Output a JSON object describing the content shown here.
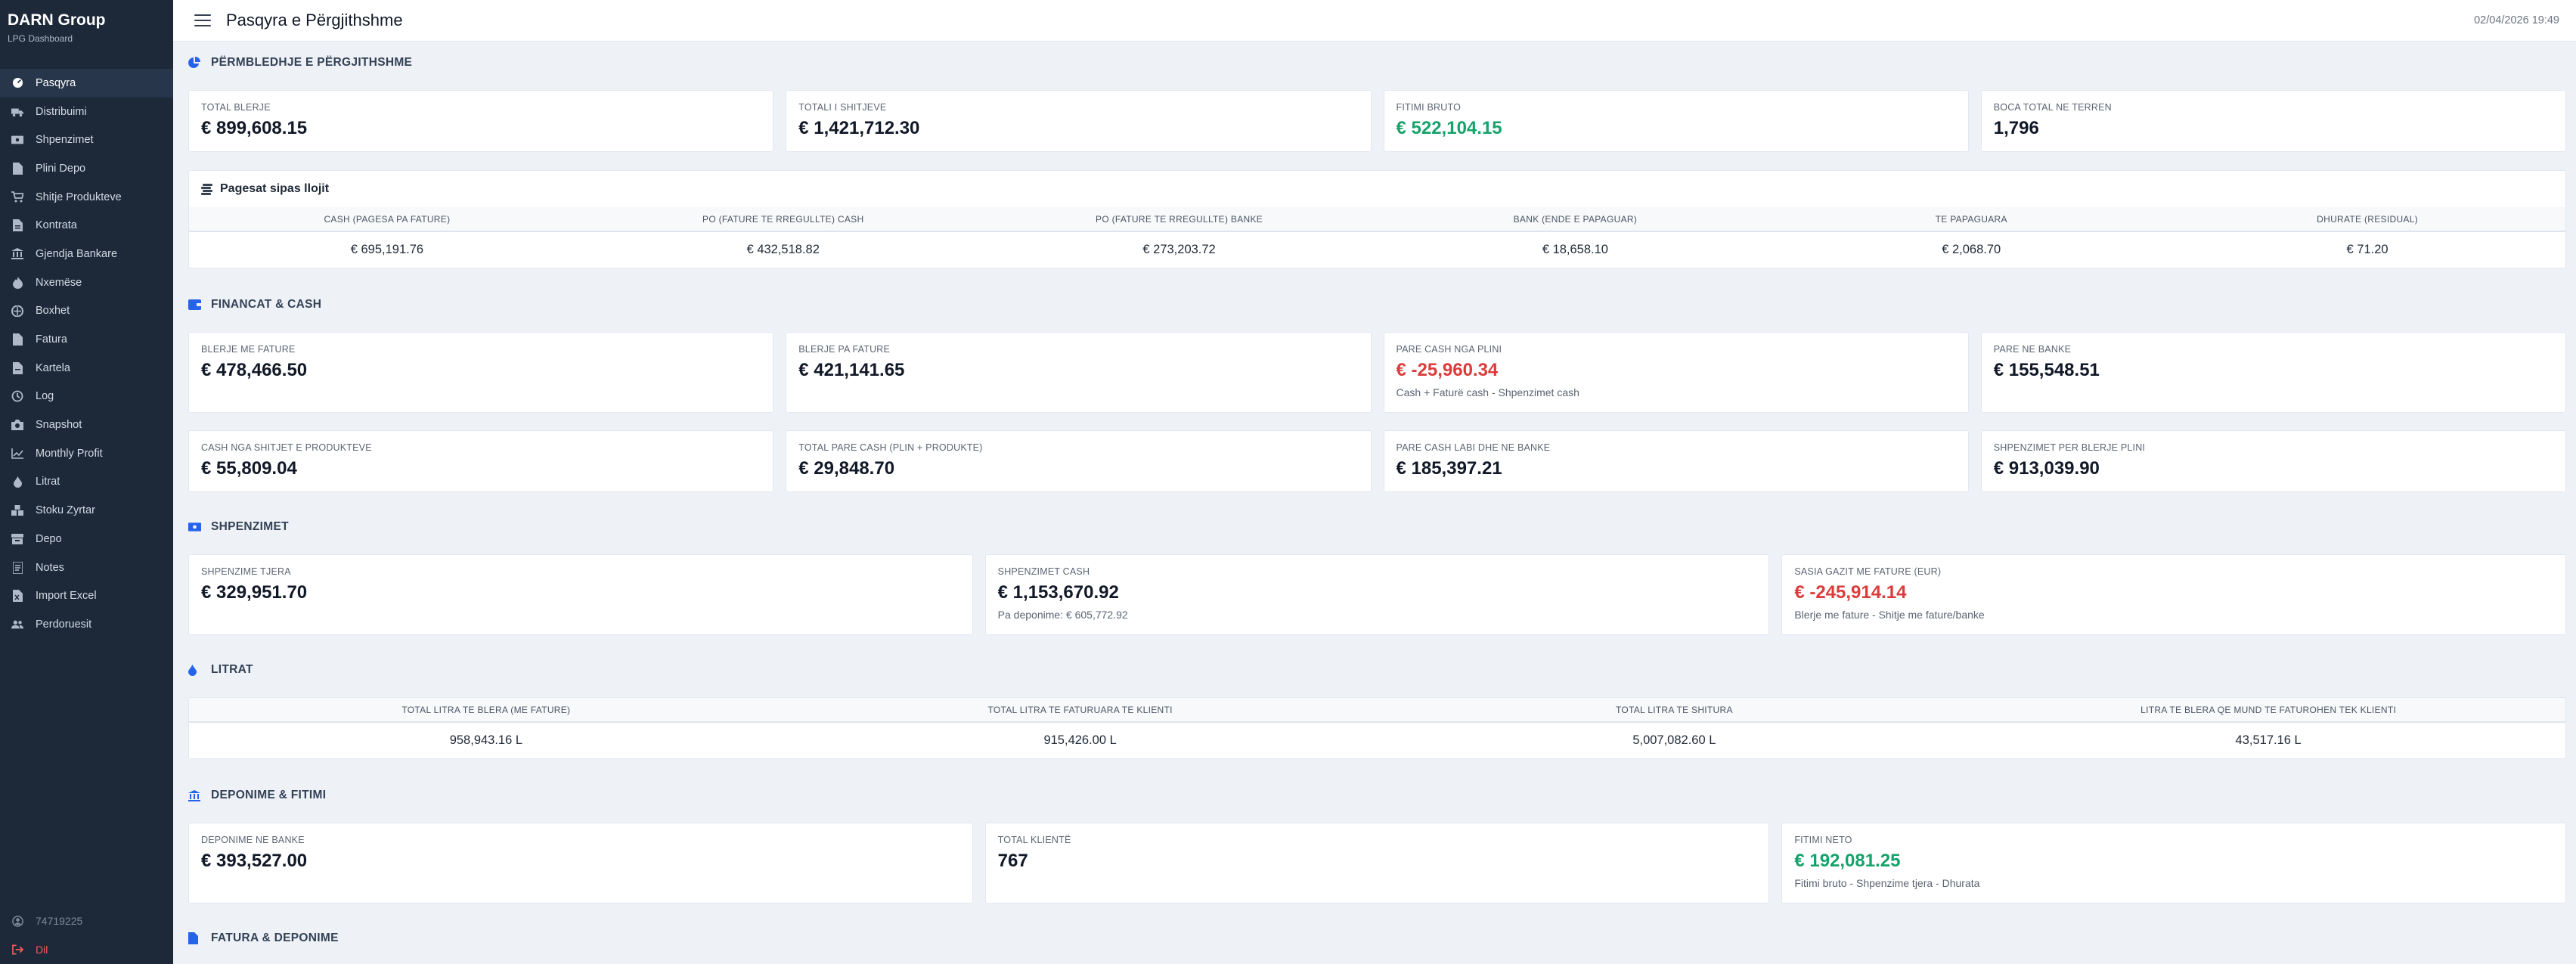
{
  "sidebar": {
    "brand": "DARN Group",
    "subtitle": "LPG Dashboard",
    "items": [
      {
        "label": "Pasqyra",
        "icon": "dashboard-icon",
        "active": true
      },
      {
        "label": "Distribuimi",
        "icon": "truck-icon"
      },
      {
        "label": "Shpenzimet",
        "icon": "money-icon"
      },
      {
        "label": "Plini Depo",
        "icon": "file-icon"
      },
      {
        "label": "Shitje Produkteve",
        "icon": "cart-icon"
      },
      {
        "label": "Kontrata",
        "icon": "document-icon"
      },
      {
        "label": "Gjendja Bankare",
        "icon": "bank-icon"
      },
      {
        "label": "Nxemëse",
        "icon": "flame-icon"
      },
      {
        "label": "Boxhet",
        "icon": "box-icon"
      },
      {
        "label": "Fatura",
        "icon": "invoice-icon"
      },
      {
        "label": "Kartela",
        "icon": "card-file-icon"
      },
      {
        "label": "Log",
        "icon": "history-icon"
      },
      {
        "label": "Snapshot",
        "icon": "camera-icon"
      },
      {
        "label": "Monthly Profit",
        "icon": "chart-icon"
      },
      {
        "label": "Litrat",
        "icon": "droplet-icon"
      },
      {
        "label": "Stoku Zyrtar",
        "icon": "stock-icon"
      },
      {
        "label": "Depo",
        "icon": "warehouse-icon"
      },
      {
        "label": "Notes",
        "icon": "notes-icon"
      },
      {
        "label": "Import Excel",
        "icon": "excel-icon"
      },
      {
        "label": "Perdoruesit",
        "icon": "users-icon"
      }
    ],
    "user": "74719225",
    "logout": "Dil"
  },
  "topbar": {
    "title": "Pasqyra e Përgjithshme",
    "datetime": "02/04/2026 19:49"
  },
  "sections": {
    "overview": {
      "title": "Përmbledhje e Përgjithshme",
      "cards": [
        {
          "label": "Total Blerje",
          "value": "€ 899,608.15"
        },
        {
          "label": "Totali i Shitjeve",
          "value": "€ 1,421,712.30"
        },
        {
          "label": "Fitimi Bruto",
          "value": "€ 522,104.15"
        },
        {
          "label": "Boca total ne terren",
          "value": "1,796"
        }
      ],
      "payments": {
        "title": "Pagesat sipas llojit",
        "headers": [
          "Cash (pagesa pa fature)",
          "PO (fature te rregullte) Cash",
          "PO (fature te rregullte) Banke",
          "Bank (ende e papaguar)",
          "Te papaguara",
          "Dhurate (residual)"
        ],
        "values": [
          "€ 695,191.76",
          "€ 432,518.82",
          "€ 273,203.72",
          "€ 18,658.10",
          "€ 2,068.70",
          "€ 71.20"
        ]
      }
    },
    "finance": {
      "title": "Financat & Cash",
      "cards_row1": [
        {
          "label": "Blerje me fature",
          "value": "€ 478,466.50"
        },
        {
          "label": "Blerje pa fature",
          "value": "€ 421,141.65"
        },
        {
          "label": "Pare cash nga plini",
          "value": "€ -25,960.34",
          "note": "Cash + Faturë cash - Shpenzimet cash"
        },
        {
          "label": "Pare ne banke",
          "value": "€ 155,548.51"
        }
      ],
      "cards_row2": [
        {
          "label": "Cash nga shitjet e produkteve",
          "value": "€ 55,809.04"
        },
        {
          "label": "Total pare cash (plin + produkte)",
          "value": "€ 29,848.70"
        },
        {
          "label": "Pare cash labi dhe ne banke",
          "value": "€ 185,397.21"
        },
        {
          "label": "Shpenzimet per blerje plini",
          "value": "€ 913,039.90"
        }
      ]
    },
    "expenses": {
      "title": "Shpenzimet",
      "cards": [
        {
          "label": "Shpenzime tjera",
          "value": "€ 329,951.70"
        },
        {
          "label": "Shpenzimet cash",
          "value": "€ 1,153,670.92",
          "note": "Pa deponime: € 605,772.92"
        },
        {
          "label": "Sasia gazit me fature (EUR)",
          "value": "€ -245,914.14",
          "note": "Blerje me fature - Shitje me fature/banke"
        }
      ]
    },
    "liters": {
      "title": "Litrat",
      "headers": [
        "Total litra te blera (me fature)",
        "Total litra te faturuara te klienti",
        "Total litra te shitura",
        "Litra te blera qe mund te faturohen tek klienti"
      ],
      "values": [
        "958,943.16 L",
        "915,426.00 L",
        "5,007,082.60 L",
        "43,517.16 L"
      ]
    },
    "deposits": {
      "title": "Deponime & Fitimi",
      "cards": [
        {
          "label": "Deponime ne banke",
          "value": "€ 393,527.00"
        },
        {
          "label": "Total klientë",
          "value": "767"
        },
        {
          "label": "Fitimi neto",
          "value": "€ 192,081.25",
          "note": "Fitimi bruto - Shpenzime tjera - Dhurata"
        }
      ]
    },
    "invoices": {
      "title": "Fatura & Deponime"
    }
  },
  "colors": {
    "sidebar_bg": "#1d2939",
    "accent": "#2563eb",
    "positive": "#16a36b",
    "negative": "#dc3b3b",
    "logout": "#ef5b5b"
  }
}
